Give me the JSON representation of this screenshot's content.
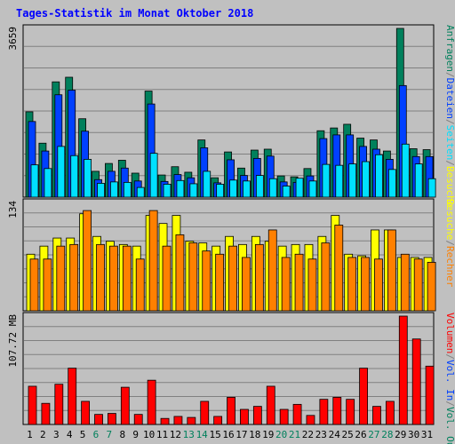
{
  "chart_data": [
    {
      "type": "bar",
      "title": "Tages-Statistik im Monat Oktober 2018",
      "max_label": "3659",
      "ylim": [
        0,
        3659
      ],
      "grid": true,
      "right_legend": [
        {
          "text": "Anfragen",
          "color": "#00805c"
        },
        {
          "text": "/",
          "color": "#808080"
        },
        {
          "text": "Dateien",
          "color": "#0040ff"
        },
        {
          "text": "/",
          "color": "#808080"
        },
        {
          "text": "Seiten",
          "color": "#00e0ff"
        },
        {
          "text": "/",
          "color": "#808080"
        },
        {
          "text": "Besuche",
          "color": "#ffff00"
        }
      ],
      "categories": [
        "1",
        "2",
        "3",
        "4",
        "5",
        "6",
        "7",
        "8",
        "9",
        "10",
        "11",
        "12",
        "13",
        "14",
        "15",
        "16",
        "17",
        "18",
        "19",
        "20",
        "21",
        "22",
        "23",
        "24",
        "25",
        "26",
        "27",
        "28",
        "29",
        "30",
        "31"
      ],
      "series": [
        {
          "name": "Anfragen",
          "color": "#00805c",
          "values": [
            1850,
            1170,
            2500,
            2600,
            1700,
            560,
            730,
            800,
            520,
            2300,
            480,
            660,
            540,
            1240,
            420,
            980,
            630,
            1020,
            1040,
            460,
            440,
            620,
            1440,
            1500,
            1580,
            1280,
            1240,
            1000,
            3659,
            1050,
            1030
          ]
        },
        {
          "name": "Dateien",
          "color": "#0040ff",
          "values": [
            1640,
            1000,
            2220,
            2320,
            1430,
            380,
            560,
            630,
            350,
            2020,
            340,
            490,
            420,
            1070,
            310,
            810,
            470,
            840,
            890,
            330,
            320,
            460,
            1270,
            1350,
            1350,
            1100,
            1040,
            820,
            2420,
            880,
            880
          ]
        },
        {
          "name": "Seiten",
          "color": "#00e0ff",
          "values": [
            700,
            620,
            1100,
            900,
            820,
            300,
            330,
            320,
            210,
            950,
            280,
            360,
            290,
            560,
            280,
            370,
            350,
            470,
            400,
            240,
            410,
            350,
            710,
            690,
            720,
            770,
            920,
            600,
            1150,
            720,
            400
          ]
        }
      ]
    },
    {
      "type": "bar",
      "max_label": "134",
      "ylim": [
        0,
        134
      ],
      "grid": true,
      "right_legend": [
        {
          "text": "Besuche",
          "color": "#ffff00"
        },
        {
          "text": "/",
          "color": "#808080"
        },
        {
          "text": "Rechner",
          "color": "#ff8000"
        }
      ],
      "categories": [
        "1",
        "2",
        "3",
        "4",
        "5",
        "6",
        "7",
        "8",
        "9",
        "10",
        "11",
        "12",
        "13",
        "14",
        "15",
        "16",
        "17",
        "18",
        "19",
        "20",
        "21",
        "22",
        "23",
        "24",
        "25",
        "26",
        "27",
        "28",
        "29",
        "30",
        "31"
      ],
      "series": [
        {
          "name": "Besuche",
          "color": "#ffff00",
          "values": [
            70,
            80,
            90,
            90,
            120,
            92,
            86,
            82,
            80,
            118,
            108,
            118,
            86,
            84,
            80,
            92,
            82,
            92,
            86,
            80,
            82,
            82,
            92,
            118,
            70,
            68,
            100,
            100,
            66,
            66,
            66
          ]
        },
        {
          "name": "Rechner",
          "color": "#ff8000",
          "values": [
            64,
            64,
            80,
            82,
            124,
            82,
            80,
            80,
            64,
            124,
            80,
            94,
            84,
            74,
            70,
            80,
            66,
            82,
            100,
            66,
            70,
            64,
            84,
            106,
            66,
            66,
            64,
            100,
            70,
            64,
            60
          ]
        }
      ]
    },
    {
      "type": "bar",
      "max_label": "107.72 MB",
      "ylim": [
        0,
        107.72
      ],
      "grid": true,
      "right_legend": [
        {
          "text": "Volumen",
          "color": "#ff0000"
        },
        {
          "text": "/",
          "color": "#808080"
        },
        {
          "text": "Vol. In",
          "color": "#0040ff"
        },
        {
          "text": "/",
          "color": "#808080"
        },
        {
          "text": "Vol. Out",
          "color": "#00805c"
        }
      ],
      "categories": [
        "1",
        "2",
        "3",
        "4",
        "5",
        "6",
        "7",
        "8",
        "9",
        "10",
        "11",
        "12",
        "13",
        "14",
        "15",
        "16",
        "17",
        "18",
        "19",
        "20",
        "21",
        "22",
        "23",
        "24",
        "25",
        "26",
        "27",
        "28",
        "29",
        "30",
        "31"
      ],
      "series": [
        {
          "name": "Volumen",
          "color": "#ff0000",
          "values": [
            38,
            21,
            40,
            56,
            23,
            10,
            11,
            37,
            10,
            44,
            6,
            8,
            7,
            23,
            8,
            27,
            15,
            18,
            38,
            15,
            20,
            9,
            25,
            27,
            25,
            56,
            18,
            23,
            107.72,
            85,
            58
          ]
        }
      ]
    }
  ],
  "x_axis": {
    "labels": [
      "1",
      "2",
      "3",
      "4",
      "5",
      "6",
      "7",
      "8",
      "9",
      "10",
      "11",
      "12",
      "13",
      "14",
      "15",
      "16",
      "17",
      "18",
      "19",
      "20",
      "21",
      "22",
      "23",
      "24",
      "25",
      "26",
      "27",
      "28",
      "29",
      "30",
      "31"
    ],
    "weekend_days": [
      "6",
      "7",
      "13",
      "14",
      "20",
      "21",
      "27",
      "28"
    ],
    "weekday_color": "#000000",
    "weekend_color": "#00805c"
  },
  "colors": {
    "background": "#c0c0c0",
    "title": "#0000ff",
    "grid": "#808080",
    "border": "#000000"
  }
}
